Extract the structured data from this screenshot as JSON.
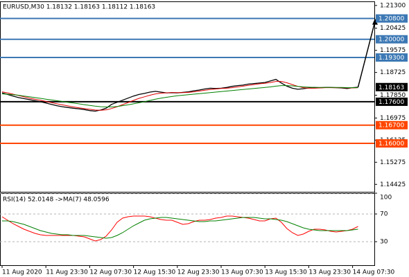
{
  "chart_data": [
    {
      "type": "line",
      "title": "EURUSD,M30  1.18132 1.18163 1.18112 1.18163",
      "ylim": [
        1.14139,
        1.21456
      ],
      "yticks": [
        {
          "value": 1.213,
          "label": "1.21300"
        },
        {
          "value": 1.20425,
          "label": "1.20425"
        },
        {
          "value": 1.19575,
          "label": "1.19575"
        },
        {
          "value": 1.18725,
          "label": "1.18725"
        },
        {
          "value": 1.1785,
          "label": "1.17850"
        },
        {
          "value": 1.16975,
          "label": "1.16975"
        },
        {
          "value": 1.16125,
          "label": "1.16125"
        },
        {
          "value": 1.15275,
          "label": "1.15275"
        },
        {
          "value": 1.14425,
          "label": "1.14425"
        }
      ],
      "series": [
        {
          "color": "#000000",
          "values": [
            1.1794,
            1.1788,
            1.1782,
            1.1776,
            1.1772,
            1.1768,
            1.1764,
            1.176,
            1.1755,
            1.175,
            1.1745,
            1.1741,
            1.1738,
            1.1735,
            1.1733,
            1.173,
            1.1726,
            1.1724,
            1.1728,
            1.1735,
            1.175,
            1.1758,
            1.1766,
            1.1774,
            1.1782,
            1.1788,
            1.1792,
            1.1797,
            1.18,
            1.1797,
            1.1794,
            1.1795,
            1.1794,
            1.1796,
            1.1798,
            1.1802,
            1.1805,
            1.1809,
            1.1812,
            1.1811,
            1.1812,
            1.1815,
            1.1819,
            1.1822,
            1.1824,
            1.1828,
            1.183,
            1.1832,
            1.1834,
            1.184,
            1.1846,
            1.1832,
            1.182,
            1.1812,
            1.1808,
            1.181,
            1.1813,
            1.1815,
            1.1814,
            1.1815,
            1.1815,
            1.1814,
            1.1813,
            1.1811,
            1.1814,
            1.1816
          ]
        },
        {
          "color": "#e00000",
          "values": [
            1.1798,
            1.1794,
            1.1789,
            1.1784,
            1.1779,
            1.1774,
            1.177,
            1.1766,
            1.1761,
            1.1757,
            1.1752,
            1.1748,
            1.1744,
            1.174,
            1.1737,
            1.1734,
            1.1731,
            1.1728,
            1.1727,
            1.1729,
            1.1734,
            1.1741,
            1.1749,
            1.1757,
            1.1765,
            1.1773,
            1.1779,
            1.1785,
            1.179,
            1.1793,
            1.1794,
            1.1795,
            1.1795,
            1.1795,
            1.1796,
            1.1798,
            1.1801,
            1.1804,
            1.1807,
            1.1809,
            1.1811,
            1.1812,
            1.1814,
            1.1817,
            1.182,
            1.1823,
            1.1826,
            1.1829,
            1.1831,
            1.1834,
            1.1838,
            1.1838,
            1.1833,
            1.1826,
            1.1819,
            1.1814,
            1.1812,
            1.1812,
            1.1813,
            1.1814,
            1.1814,
            1.1814,
            1.1814,
            1.1813,
            1.1813,
            1.1814
          ]
        },
        {
          "color": "#008000",
          "values": [
            1.179,
            1.1789,
            1.1787,
            1.1785,
            1.1782,
            1.1779,
            1.1776,
            1.1773,
            1.177,
            1.1767,
            1.1764,
            1.1761,
            1.1758,
            1.1755,
            1.1752,
            1.1749,
            1.1746,
            1.1743,
            1.1741,
            1.174,
            1.174,
            1.1742,
            1.1745,
            1.1748,
            1.1752,
            1.1756,
            1.176,
            1.1765,
            1.177,
            1.1774,
            1.1777,
            1.178,
            1.1783,
            1.1785,
            1.1787,
            1.1789,
            1.1791,
            1.1793,
            1.1795,
            1.1797,
            1.1799,
            1.1801,
            1.1803,
            1.1805,
            1.1807,
            1.1809,
            1.1811,
            1.1813,
            1.1815,
            1.1817,
            1.182,
            1.1822,
            1.1822,
            1.1821,
            1.1819,
            1.1817,
            1.1816,
            1.1815,
            1.1815,
            1.1815,
            1.1815,
            1.1815,
            1.1815,
            1.1814,
            1.1814,
            1.1814
          ]
        }
      ],
      "levels": [
        {
          "value": 1.208,
          "label": "1.20800",
          "color": "#3c78b4"
        },
        {
          "value": 1.2,
          "label": "1.20000",
          "color": "#3c78b4"
        },
        {
          "value": 1.193,
          "label": "1.19300",
          "color": "#3c78b4"
        },
        {
          "value": 1.176,
          "label": "1.17600",
          "color": "#000000"
        },
        {
          "value": 1.167,
          "label": "1.16700",
          "color": "#ff4500"
        },
        {
          "value": 1.16,
          "label": "1.16000",
          "color": "#ff4500"
        }
      ],
      "last_price": {
        "value": 1.18163,
        "label": "1.18163",
        "color": "#000000"
      }
    },
    {
      "type": "line",
      "title": "RSI(14) 52.0148  ->MA(7) 48.0596",
      "ylim": [
        -4,
        100
      ],
      "yticks": [
        100,
        70,
        30
      ],
      "grid": "dashed",
      "categories": [
        "11 Aug 2020",
        null,
        null,
        null,
        null,
        null,
        null,
        null,
        "11 Aug 23:30",
        null,
        null,
        null,
        null,
        null,
        null,
        null,
        "12 Aug 07:30",
        null,
        null,
        null,
        null,
        null,
        null,
        null,
        "12 Aug 15:30",
        null,
        null,
        null,
        null,
        null,
        null,
        null,
        "12 Aug 23:30",
        null,
        null,
        null,
        null,
        null,
        null,
        null,
        "13 Aug 07:30",
        null,
        null,
        null,
        null,
        null,
        null,
        null,
        "13 Aug 15:30",
        null,
        null,
        null,
        null,
        null,
        null,
        null,
        "13 Aug 23:30",
        null,
        null,
        null,
        null,
        null,
        null,
        null,
        "14 Aug 07:30",
        null
      ],
      "series": [
        {
          "color": "#ff0000",
          "values": [
            66,
            61,
            56,
            52,
            48,
            45,
            42,
            40,
            39,
            39,
            39,
            39,
            39,
            39,
            38,
            37,
            34,
            31,
            33,
            38,
            47,
            58,
            64,
            66,
            67,
            67,
            67,
            66,
            64,
            62,
            61,
            61,
            58,
            55,
            56,
            59,
            61,
            61,
            62,
            64,
            65,
            67,
            67,
            66,
            65,
            64,
            62,
            60,
            60,
            63,
            64,
            58,
            49,
            43,
            39,
            41,
            45,
            48,
            48,
            47,
            45,
            44,
            45,
            46,
            48,
            52
          ]
        },
        {
          "color": "#008000",
          "values": [
            60,
            60,
            59,
            57,
            55,
            52,
            49,
            46,
            44,
            42,
            41,
            40,
            40,
            39,
            39,
            39,
            38,
            37,
            36,
            35,
            36,
            39,
            43,
            48,
            53,
            57,
            61,
            63,
            64,
            65,
            65,
            64,
            63,
            62,
            61,
            60,
            59,
            59,
            60,
            60,
            61,
            62,
            63,
            64,
            65,
            65,
            65,
            64,
            63,
            63,
            62,
            61,
            59,
            56,
            53,
            50,
            48,
            47,
            46,
            46,
            46,
            46,
            46,
            46,
            47,
            48
          ]
        }
      ]
    }
  ]
}
